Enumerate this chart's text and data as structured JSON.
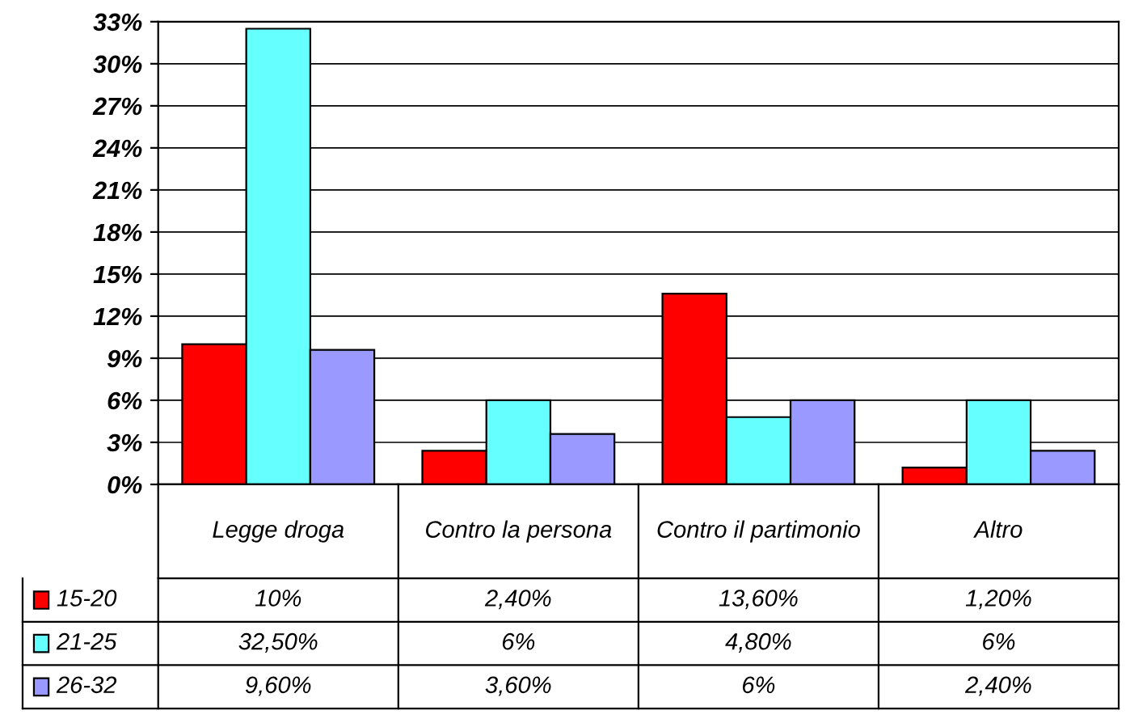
{
  "chart_data": {
    "type": "bar",
    "categories": [
      "Legge droga",
      "Contro la persona",
      "Contro il partimonio",
      "Altro"
    ],
    "series": [
      {
        "name": "15-20",
        "color": "#ff0000",
        "values": [
          10,
          2.4,
          13.6,
          1.2
        ],
        "value_labels": [
          "10%",
          "2,40%",
          "13,60%",
          "1,20%"
        ]
      },
      {
        "name": "21-25",
        "color": "#66ffff",
        "values": [
          32.5,
          6,
          4.8,
          6
        ],
        "value_labels": [
          "32,50%",
          "6%",
          "4,80%",
          "6%"
        ]
      },
      {
        "name": "26-32",
        "color": "#9999ff",
        "values": [
          9.6,
          3.6,
          6,
          2.4
        ],
        "value_labels": [
          "9,60%",
          "3,60%",
          "6%",
          "2,40%"
        ]
      }
    ],
    "ylim": [
      0,
      33
    ],
    "yticks": [
      {
        "value": 0,
        "label": "0%"
      },
      {
        "value": 3,
        "label": "3%"
      },
      {
        "value": 6,
        "label": "6%"
      },
      {
        "value": 9,
        "label": "9%"
      },
      {
        "value": 12,
        "label": "12%"
      },
      {
        "value": 15,
        "label": "15%"
      },
      {
        "value": 18,
        "label": "18%"
      },
      {
        "value": 21,
        "label": "21%"
      },
      {
        "value": 24,
        "label": "24%"
      },
      {
        "value": 27,
        "label": "27%"
      },
      {
        "value": 30,
        "label": "30%"
      },
      {
        "value": 33,
        "label": "33%"
      }
    ],
    "grid": "y",
    "legend": "bottom"
  }
}
